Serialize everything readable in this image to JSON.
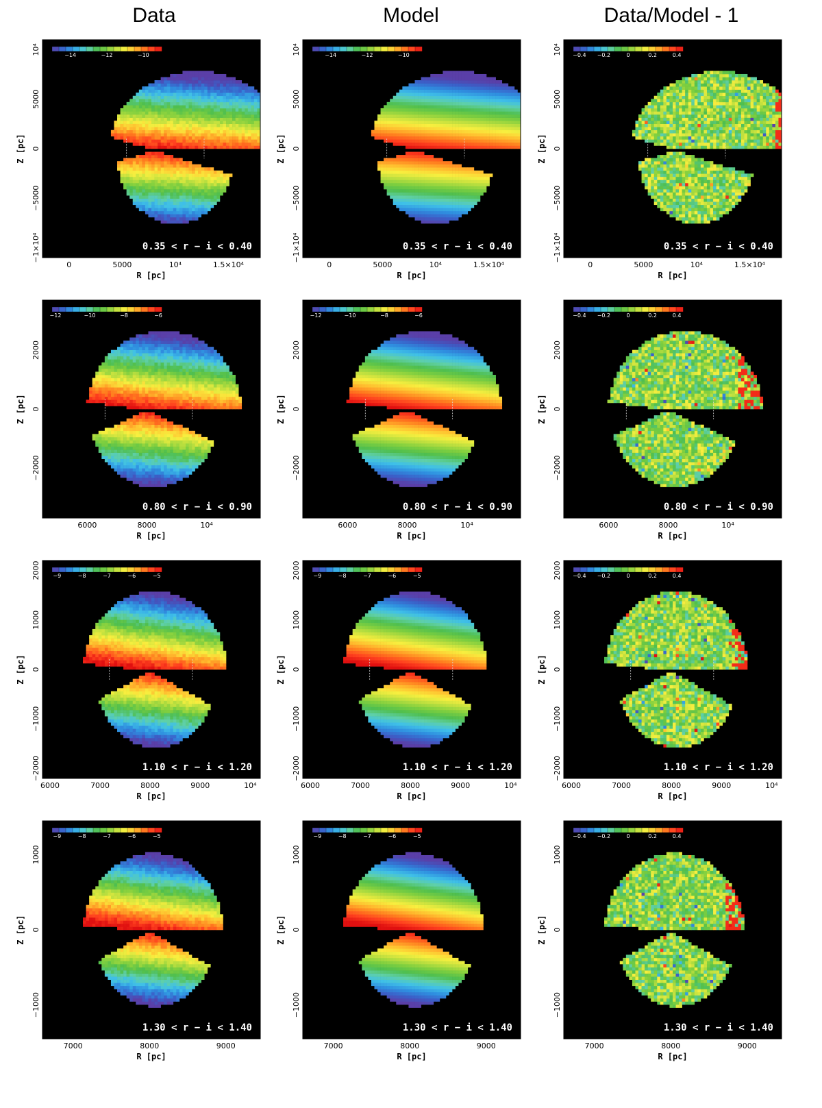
{
  "column_titles": [
    "Data",
    "Model",
    "Data/Model - 1"
  ],
  "colors": {
    "background": "#000000",
    "outline_line": "#dddddd"
  },
  "colormap": [
    "#5a3fa8",
    "#3b5fc8",
    "#2f8fe0",
    "#3fc0e8",
    "#5fd0a8",
    "#4fbf4f",
    "#7fcf3f",
    "#bfe03f",
    "#f8ef3f",
    "#ffbf2f",
    "#ff7f1f",
    "#ff3f1f",
    "#e01010"
  ],
  "chart_data": [
    {
      "type": "heatmap",
      "row": 0,
      "col": 0,
      "panel": "Data",
      "range_label": "0.35 < r − i < 0.40",
      "xlabel": "R [pc]",
      "ylabel": "Z [pc]",
      "xlim": [
        -2500,
        18000
      ],
      "ylim": [
        -11000,
        11000
      ],
      "xticks": [
        0,
        5000,
        10000,
        15000
      ],
      "xticklabels": [
        "0",
        "5000",
        "10⁴",
        "1.5×10⁴"
      ],
      "yticks": [
        -10000,
        -5000,
        0,
        5000,
        10000
      ],
      "yticklabels": [
        "−1×10⁴",
        "−5000",
        "0",
        "5000",
        "10⁴"
      ],
      "colorbar": {
        "min": -15,
        "max": -9,
        "ticks": [
          -14,
          -12,
          -10
        ],
        "ticklabels": [
          "−14",
          "−12",
          "−10"
        ]
      }
    },
    {
      "type": "heatmap",
      "row": 0,
      "col": 1,
      "panel": "Model",
      "range_label": "0.35 < r − i < 0.40",
      "xlabel": "R [pc]",
      "ylabel": "Z [pc]",
      "xlim": [
        -2500,
        18000
      ],
      "ylim": [
        -11000,
        11000
      ],
      "xticks": [
        0,
        5000,
        10000,
        15000
      ],
      "xticklabels": [
        "0",
        "5000",
        "10⁴",
        "1.5×10⁴"
      ],
      "yticks": [
        -10000,
        -5000,
        0,
        5000,
        10000
      ],
      "yticklabels": [
        "−1×10⁴",
        "−5000",
        "0",
        "5000",
        "10⁴"
      ],
      "colorbar": {
        "min": -15,
        "max": -9,
        "ticks": [
          -14,
          -12,
          -10
        ],
        "ticklabels": [
          "−14",
          "−12",
          "−10"
        ]
      }
    },
    {
      "type": "heatmap",
      "row": 0,
      "col": 2,
      "panel": "Data/Model - 1",
      "range_label": "0.35 < r − i < 0.40",
      "xlabel": "R [pc]",
      "ylabel": "Z [pc]",
      "xlim": [
        -2500,
        18000
      ],
      "ylim": [
        -11000,
        11000
      ],
      "xticks": [
        0,
        5000,
        10000,
        15000
      ],
      "xticklabels": [
        "0",
        "5000",
        "10⁴",
        "1.5×10⁴"
      ],
      "yticks": [
        -10000,
        -5000,
        0,
        5000,
        10000
      ],
      "yticklabels": [
        "−1×10⁴",
        "−5000",
        "0",
        "5000",
        "10⁴"
      ],
      "colorbar": {
        "min": -0.45,
        "max": 0.45,
        "ticks": [
          -0.4,
          -0.2,
          0,
          0.2,
          0.4
        ],
        "ticklabels": [
          "−0.4",
          "−0.2",
          "0",
          "0.2",
          "0.4"
        ]
      }
    },
    {
      "type": "heatmap",
      "row": 1,
      "col": 0,
      "panel": "Data",
      "range_label": "0.80 < r − i < 0.90",
      "xlabel": "R [pc]",
      "ylabel": "Z [pc]",
      "xlim": [
        4500,
        11800
      ],
      "ylim": [
        -3700,
        3700
      ],
      "xticks": [
        6000,
        8000,
        10000
      ],
      "xticklabels": [
        "6000",
        "8000",
        "10⁴"
      ],
      "yticks": [
        -2000,
        0,
        2000
      ],
      "yticklabels": [
        "−2000",
        "0",
        "2000"
      ],
      "colorbar": {
        "min": -12.2,
        "max": -5.8,
        "ticks": [
          -12,
          -10,
          -8,
          -6
        ],
        "ticklabels": [
          "−12",
          "−10",
          "−8",
          "−6"
        ]
      }
    },
    {
      "type": "heatmap",
      "row": 1,
      "col": 1,
      "panel": "Model",
      "range_label": "0.80 < r − i < 0.90",
      "xlabel": "R [pc]",
      "ylabel": "Z [pc]",
      "xlim": [
        4500,
        11800
      ],
      "ylim": [
        -3700,
        3700
      ],
      "xticks": [
        6000,
        8000,
        10000
      ],
      "xticklabels": [
        "6000",
        "8000",
        "10⁴"
      ],
      "yticks": [
        -2000,
        0,
        2000
      ],
      "yticklabels": [
        "−2000",
        "0",
        "2000"
      ],
      "colorbar": {
        "min": -12.2,
        "max": -5.8,
        "ticks": [
          -12,
          -10,
          -8,
          -6
        ],
        "ticklabels": [
          "−12",
          "−10",
          "−8",
          "−6"
        ]
      }
    },
    {
      "type": "heatmap",
      "row": 1,
      "col": 2,
      "panel": "Data/Model - 1",
      "range_label": "0.80 < r − i < 0.90",
      "xlabel": "R [pc]",
      "ylabel": "Z [pc]",
      "xlim": [
        4500,
        11800
      ],
      "ylim": [
        -3700,
        3700
      ],
      "xticks": [
        6000,
        8000,
        10000
      ],
      "xticklabels": [
        "6000",
        "8000",
        "10⁴"
      ],
      "yticks": [
        -2000,
        0,
        2000
      ],
      "yticklabels": [
        "−2000",
        "0",
        "2000"
      ],
      "colorbar": {
        "min": -0.45,
        "max": 0.45,
        "ticks": [
          -0.4,
          -0.2,
          0,
          0.2,
          0.4
        ],
        "ticklabels": [
          "−0.4",
          "−0.2",
          "0",
          "0.2",
          "0.4"
        ]
      }
    },
    {
      "type": "heatmap",
      "row": 2,
      "col": 0,
      "panel": "Data",
      "range_label": "1.10 < r − i < 1.20",
      "xlabel": "R [pc]",
      "ylabel": "Z [pc]",
      "xlim": [
        5850,
        10200
      ],
      "ylim": [
        -2200,
        2200
      ],
      "xticks": [
        6000,
        7000,
        8000,
        9000,
        10000
      ],
      "xticklabels": [
        "6000",
        "7000",
        "8000",
        "9000",
        "10⁴"
      ],
      "yticks": [
        -2000,
        -1000,
        0,
        1000,
        2000
      ],
      "yticklabels": [
        "−2000",
        "−1000",
        "0",
        "1000",
        "2000"
      ],
      "colorbar": {
        "min": -9.2,
        "max": -4.8,
        "ticks": [
          -9,
          -8,
          -7,
          -6,
          -5
        ],
        "ticklabels": [
          "−9",
          "−8",
          "−7",
          "−6",
          "−5"
        ]
      }
    },
    {
      "type": "heatmap",
      "row": 2,
      "col": 1,
      "panel": "Model",
      "range_label": "1.10 < r − i < 1.20",
      "xlabel": "R [pc]",
      "ylabel": "Z [pc]",
      "xlim": [
        5850,
        10200
      ],
      "ylim": [
        -2200,
        2200
      ],
      "xticks": [
        6000,
        7000,
        8000,
        9000,
        10000
      ],
      "xticklabels": [
        "6000",
        "7000",
        "8000",
        "9000",
        "10⁴"
      ],
      "yticks": [
        -2000,
        -1000,
        0,
        1000,
        2000
      ],
      "yticklabels": [
        "−2000",
        "−1000",
        "0",
        "1000",
        "2000"
      ],
      "colorbar": {
        "min": -9.2,
        "max": -4.8,
        "ticks": [
          -9,
          -8,
          -7,
          -6,
          -5
        ],
        "ticklabels": [
          "−9",
          "−8",
          "−7",
          "−6",
          "−5"
        ]
      }
    },
    {
      "type": "heatmap",
      "row": 2,
      "col": 2,
      "panel": "Data/Model - 1",
      "range_label": "1.10 < r − i < 1.20",
      "xlabel": "R [pc]",
      "ylabel": "Z [pc]",
      "xlim": [
        5850,
        10200
      ],
      "ylim": [
        -2200,
        2200
      ],
      "xticks": [
        6000,
        7000,
        8000,
        9000,
        10000
      ],
      "xticklabels": [
        "6000",
        "7000",
        "8000",
        "9000",
        "10⁴"
      ],
      "yticks": [
        -2000,
        -1000,
        0,
        1000,
        2000
      ],
      "yticklabels": [
        "−2000",
        "−1000",
        "0",
        "1000",
        "2000"
      ],
      "colorbar": {
        "min": -0.45,
        "max": 0.45,
        "ticks": [
          -0.4,
          -0.2,
          0,
          0.2,
          0.4
        ],
        "ticklabels": [
          "−0.4",
          "−0.2",
          "0",
          "0.2",
          "0.4"
        ]
      }
    },
    {
      "type": "heatmap",
      "row": 3,
      "col": 0,
      "panel": "Data",
      "range_label": "1.30 < r − i < 1.40",
      "xlabel": "R [pc]",
      "ylabel": "Z [pc]",
      "xlim": [
        6600,
        9450
      ],
      "ylim": [
        -1450,
        1450
      ],
      "xticks": [
        7000,
        8000,
        9000
      ],
      "xticklabels": [
        "7000",
        "8000",
        "9000"
      ],
      "yticks": [
        -1000,
        0,
        1000
      ],
      "yticklabels": [
        "−1000",
        "0",
        "1000"
      ],
      "colorbar": {
        "min": -9.2,
        "max": -4.8,
        "ticks": [
          -9,
          -8,
          -7,
          -6,
          -5
        ],
        "ticklabels": [
          "−9",
          "−8",
          "−7",
          "−6",
          "−5"
        ]
      }
    },
    {
      "type": "heatmap",
      "row": 3,
      "col": 1,
      "panel": "Model",
      "range_label": "1.30 < r − i < 1.40",
      "xlabel": "R [pc]",
      "ylabel": "Z [pc]",
      "xlim": [
        6600,
        9450
      ],
      "ylim": [
        -1450,
        1450
      ],
      "xticks": [
        7000,
        8000,
        9000
      ],
      "xticklabels": [
        "7000",
        "8000",
        "9000"
      ],
      "yticks": [
        -1000,
        0,
        1000
      ],
      "yticklabels": [
        "−1000",
        "0",
        "1000"
      ],
      "colorbar": {
        "min": -9.2,
        "max": -4.8,
        "ticks": [
          -9,
          -8,
          -7,
          -6,
          -5
        ],
        "ticklabels": [
          "−9",
          "−8",
          "−7",
          "−6",
          "−5"
        ]
      }
    },
    {
      "type": "heatmap",
      "row": 3,
      "col": 2,
      "panel": "Data/Model - 1",
      "range_label": "1.30 < r − i < 1.40",
      "xlabel": "R [pc]",
      "ylabel": "Z [pc]",
      "xlim": [
        6600,
        9450
      ],
      "ylim": [
        -1450,
        1450
      ],
      "xticks": [
        7000,
        8000,
        9000
      ],
      "xticklabels": [
        "7000",
        "8000",
        "9000"
      ],
      "yticks": [
        -1000,
        0,
        1000
      ],
      "yticklabels": [
        "−1000",
        "0",
        "1000"
      ],
      "colorbar": {
        "min": -0.45,
        "max": 0.45,
        "ticks": [
          -0.4,
          -0.2,
          0,
          0.2,
          0.4
        ],
        "ticklabels": [
          "−0.4",
          "−0.2",
          "0",
          "0.2",
          "0.4"
        ]
      }
    }
  ]
}
